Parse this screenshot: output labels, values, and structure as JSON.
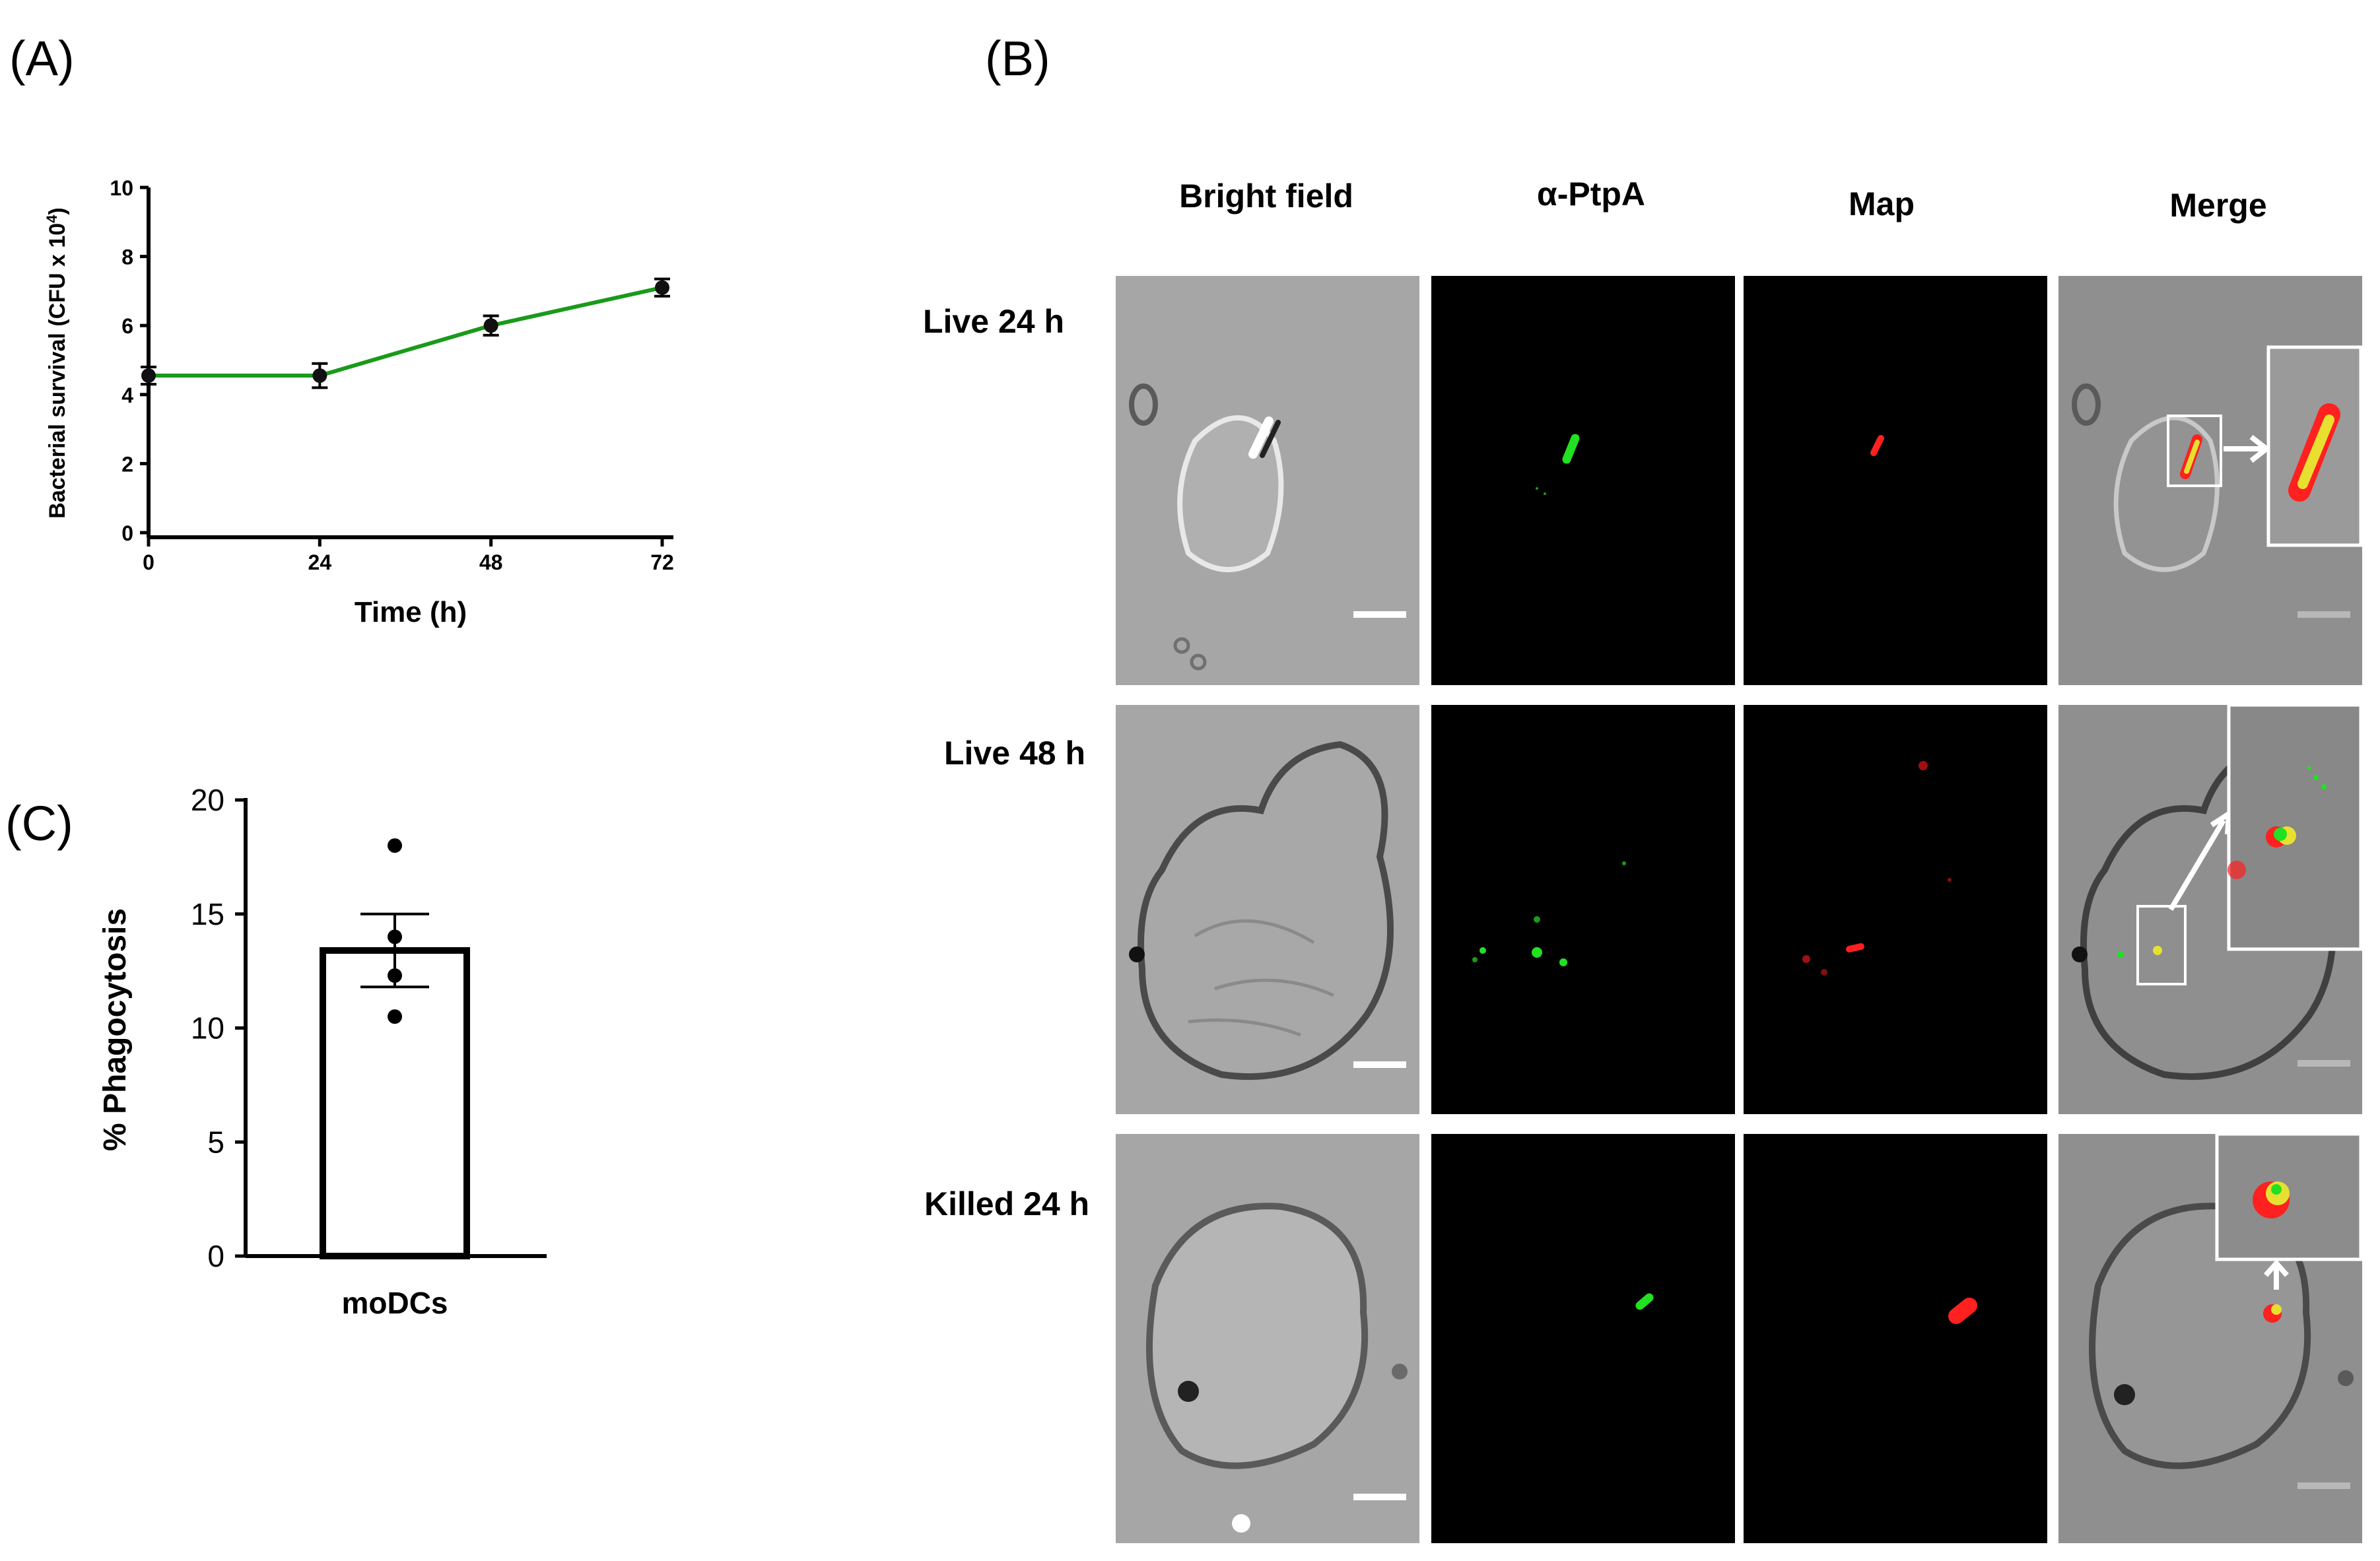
{
  "panels": {
    "a_label": "(A)",
    "b_label": "(B)",
    "c_label": "(C)"
  },
  "chart_data": [
    {
      "panel": "(A)",
      "type": "line",
      "title": "",
      "xlabel": "Time (h)",
      "ylabel": "Bacterial survival (CFU x 10",
      "ylabel_sup": "4",
      "ylabel_close": ")",
      "x": [
        0,
        24,
        48,
        72
      ],
      "xticks": [
        "0",
        "24",
        "48",
        "72"
      ],
      "xlim": [
        0,
        72
      ],
      "yticks": [
        "0",
        "2",
        "4",
        "6",
        "8",
        "10"
      ],
      "ylim": [
        0,
        10
      ],
      "grid": false,
      "series": [
        {
          "values": [
            4.55,
            4.55,
            6.0,
            7.1
          ],
          "errors": [
            0.25,
            0.35,
            0.28,
            0.25
          ],
          "color": "#1a9a1a"
        }
      ]
    },
    {
      "panel": "(C)",
      "type": "bar",
      "title": "",
      "xlabel": "",
      "ylabel": "% Phagocytosis",
      "categories": [
        "moDCs"
      ],
      "values": [
        13.4
      ],
      "sem": [
        1.6
      ],
      "points": [
        18.0,
        14.0,
        12.3,
        10.5
      ],
      "yticks": [
        "0",
        "5",
        "10",
        "15",
        "20"
      ],
      "ylim": [
        0,
        20
      ],
      "grid": false
    }
  ],
  "micrographs": {
    "column_headers": [
      "Bright field",
      "α-PtpA",
      "Map",
      "Merge"
    ],
    "row_labels": [
      "Live 24 h",
      "Live 48 h",
      "Killed 24 h"
    ],
    "colors": {
      "green_channel": "#22e022",
      "red_channel": "#ff2020",
      "merge_yellow": "#e8e030"
    }
  }
}
